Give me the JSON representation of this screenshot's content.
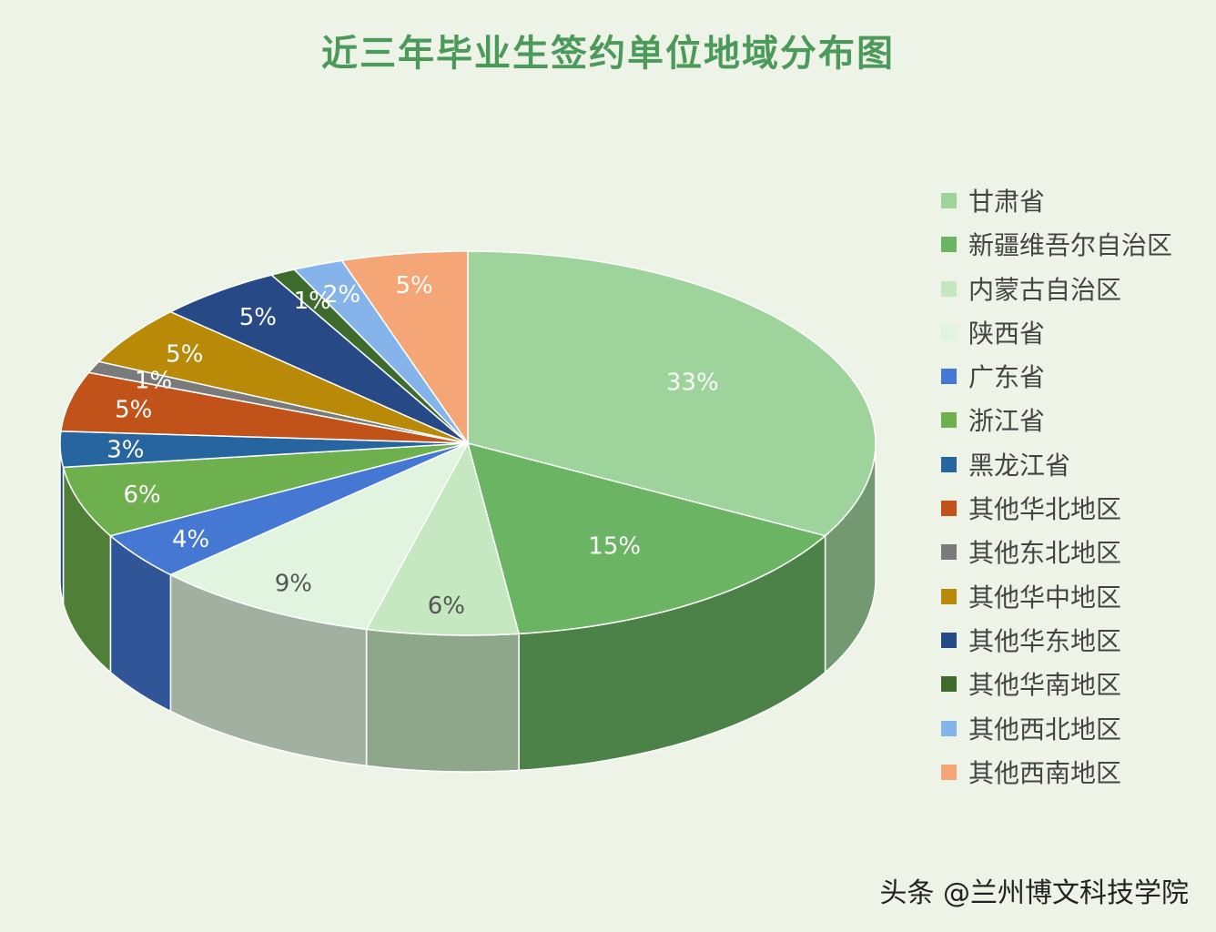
{
  "title": "近三年毕业生签约单位地域分布图",
  "watermark": "头条 @兰州博文科技学院",
  "chart_data": {
    "type": "pie",
    "title": "近三年毕业生签约单位地域分布图",
    "style": "3d",
    "legend_position": "right",
    "categories": [
      "甘肃省",
      "新疆维吾尔自治区",
      "内蒙古自治区",
      "陕西省",
      "广东省",
      "浙江省",
      "黑龙江省",
      "其他华北地区",
      "其他东北地区",
      "其他华中地区",
      "其他华东地区",
      "其他华南地区",
      "其他西北地区",
      "其他西南地区"
    ],
    "values": [
      33,
      15,
      6,
      9,
      4,
      6,
      3,
      5,
      1,
      5,
      5,
      1,
      2,
      5
    ],
    "labels": [
      "33%",
      "15%",
      "6%",
      "9%",
      "4%",
      "6%",
      "3%",
      "5%",
      "1%",
      "5%",
      "5%",
      "1%",
      "2%",
      "5%"
    ],
    "colors": [
      "#9ed49c",
      "#6ab464",
      "#c5e8c0",
      "#e0f4df",
      "#4478d2",
      "#6fb04e",
      "#2665a0",
      "#c0521a",
      "#7a7a7a",
      "#b88a08",
      "#274a86",
      "#3d6b2c",
      "#84b4ea",
      "#f5a676"
    ]
  }
}
